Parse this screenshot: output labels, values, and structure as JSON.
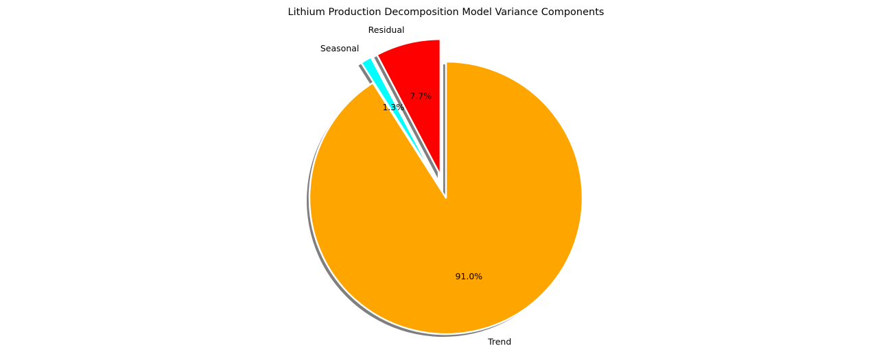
{
  "chart_data": {
    "type": "pie",
    "title": "Lithium Production Decomposition Model Variance Components",
    "slices": [
      {
        "label": "Trend",
        "value": 91.0,
        "pct_label": "91.0%",
        "color": "#ffa500",
        "exploded": false
      },
      {
        "label": "Seasonal",
        "value": 1.3,
        "pct_label": "1.3%",
        "color": "#00ffff",
        "exploded": true
      },
      {
        "label": "Residual",
        "value": 7.7,
        "pct_label": "7.7%",
        "color": "#ff0000",
        "exploded": true
      }
    ],
    "start_angle": 90,
    "direction": "clockwise",
    "shadow": true,
    "legend": "none"
  }
}
